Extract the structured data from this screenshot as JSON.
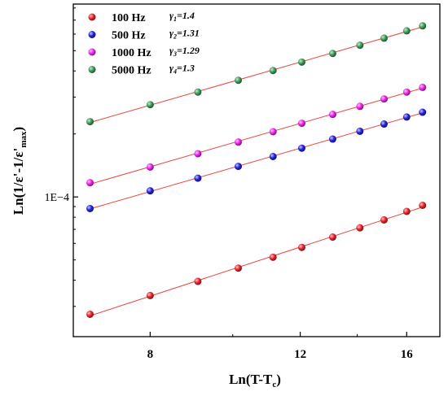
{
  "chart_data": {
    "type": "scatter",
    "x_scale": "log",
    "y_scale": "log",
    "xlim": [
      6.5,
      17.5
    ],
    "ylim": [
      2.15e-05,
      0.000835
    ],
    "x_ticks": [
      8,
      12,
      16
    ],
    "x_tick_labels": [
      "8",
      "12",
      "16"
    ],
    "y_ticks": [
      0.0001
    ],
    "y_tick_labels": [
      "1E−4"
    ],
    "xlabel": {
      "prefix": "Ln(T-T",
      "sub": "c",
      "suffix": ")"
    },
    "ylabel": {
      "prefix": "Ln(1/ε'-1/ε'",
      "sub": "max",
      "suffix": ")"
    },
    "fit_line_color": "#e8443a",
    "x": [
      6.8,
      8.0,
      9.1,
      10.15,
      11.15,
      12.05,
      13.1,
      14.1,
      15.05,
      16.0,
      16.7
    ],
    "series": [
      {
        "name": "100 Hz",
        "color": "#e8222a",
        "gamma_symbol": "γ",
        "gamma_sub": "1",
        "gamma_value": "=1.4",
        "values": [
          2.75e-05,
          3.38e-05,
          3.95e-05,
          4.57e-05,
          5.15e-05,
          5.74e-05,
          6.43e-05,
          7.12e-05,
          7.77e-05,
          8.53e-05,
          9.12e-05
        ]
      },
      {
        "name": "500 Hz",
        "color": "#2222dd",
        "gamma_symbol": "γ",
        "gamma_sub": "2",
        "gamma_value": "=1.31",
        "values": [
          8.8e-05,
          0.000107,
          0.000123,
          0.00014,
          0.000156,
          0.000171,
          0.000189,
          0.000206,
          0.000223,
          0.000241,
          0.000254
        ]
      },
      {
        "name": "1000 Hz",
        "color": "#ee22ee",
        "gamma_symbol": "γ",
        "gamma_sub": "3",
        "gamma_value": "=1.29",
        "values": [
          0.000117,
          0.000139,
          0.000161,
          0.000183,
          0.000205,
          0.000225,
          0.000248,
          0.000271,
          0.000294,
          0.000317,
          0.000334
        ]
      },
      {
        "name": "5000 Hz",
        "color": "#3c9a57",
        "gamma_symbol": "γ",
        "gamma_sub": "4",
        "gamma_value": "=1.3",
        "values": [
          0.000229,
          0.000276,
          0.000317,
          0.000361,
          0.000402,
          0.000441,
          0.000485,
          0.000531,
          0.000574,
          0.000622,
          0.000657
        ]
      }
    ]
  }
}
